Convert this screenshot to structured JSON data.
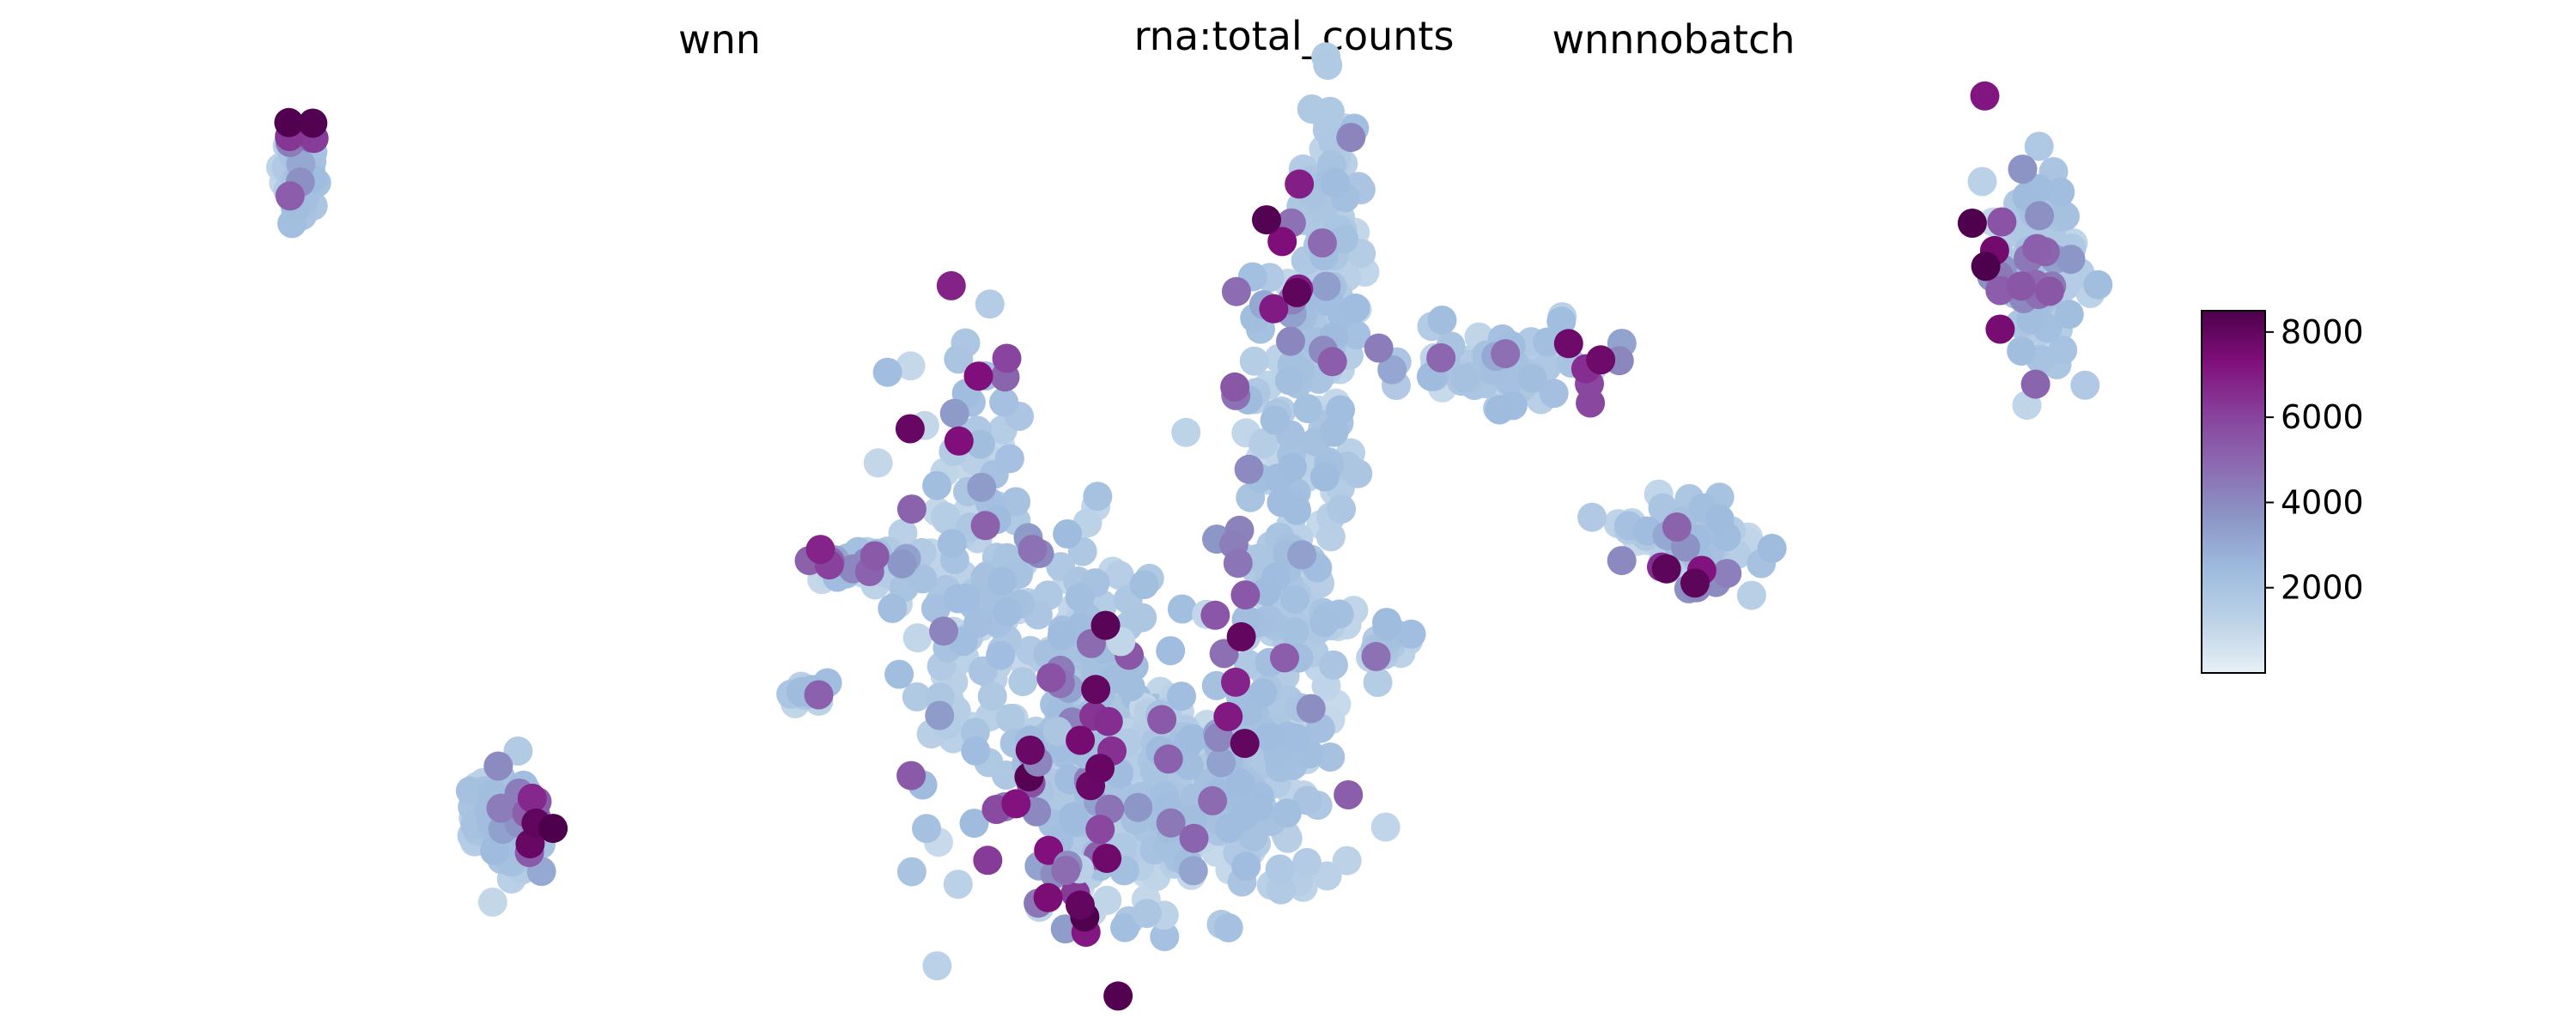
{
  "titles": {
    "left": "wnn",
    "center": "rna:total_counts",
    "right": "wnnnobatch"
  },
  "colorbar": {
    "ticks": [
      "2000",
      "4000",
      "6000",
      "8000"
    ],
    "colormap": "BuPu",
    "colors": [
      "#e7f0f6",
      "#bcd2e7",
      "#9ebbde",
      "#8c96c6",
      "#8c6bb1",
      "#88419d",
      "#810f7c",
      "#4d004b"
    ]
  },
  "chart_data": [
    {
      "type": "scatter",
      "panel": "wnn",
      "title": "wnn",
      "axes_visible": false,
      "grid": false,
      "color_by": "rna:total_counts",
      "color_range": [
        0,
        8500
      ],
      "clusters": [
        {
          "name": "",
          "x": -8.7,
          "y": 8.4,
          "sx": 0.12,
          "sy": 0.42,
          "n": 70,
          "high_side": "top"
        },
        {
          "name": "",
          "x": -5.8,
          "y": -4.0,
          "sx": 0.22,
          "sy": 0.45,
          "n": 110,
          "high_side": "right"
        },
        {
          "name": "",
          "x": 0.6,
          "y": 0.6,
          "sx": 0.45,
          "sy": 2.2,
          "n": 140,
          "high_side": "top"
        },
        {
          "name": "",
          "x": 2.2,
          "y": -2.6,
          "sx": 0.55,
          "sy": 1.8,
          "n": 260,
          "high_side": "bottom-left"
        },
        {
          "name": "",
          "x": -0.9,
          "y": 0.9,
          "sx": 0.35,
          "sy": 0.15,
          "n": 40,
          "high_side": "left"
        },
        {
          "name": "",
          "x": -1.7,
          "y": -1.5,
          "sx": 0.12,
          "sy": 0.12,
          "n": 14,
          "high_side": "none"
        }
      ]
    },
    {
      "type": "scatter",
      "panel": "wnnnobatch",
      "title": "wnnnobatch",
      "axes_visible": false,
      "grid": false,
      "color_by": "rna:total_counts",
      "color_range": [
        0,
        8500
      ],
      "clusters": [
        {
          "name": "",
          "x": -4.9,
          "y": 6.9,
          "sx": 0.2,
          "sy": 1.4,
          "n": 110,
          "high_side": "left"
        },
        {
          "name": "",
          "x": -3.0,
          "y": 4.7,
          "sx": 0.55,
          "sy": 0.35,
          "n": 90,
          "high_side": "right"
        },
        {
          "name": "",
          "x": -5.3,
          "y": 0.6,
          "sx": 0.35,
          "sy": 2.2,
          "n": 180,
          "high_side": "left"
        },
        {
          "name": "",
          "x": -6.2,
          "y": -3.4,
          "sx": 0.75,
          "sy": 1.0,
          "n": 240,
          "high_side": "left"
        },
        {
          "name": "",
          "x": -4.2,
          "y": -0.6,
          "sx": 0.15,
          "sy": 0.15,
          "n": 18,
          "high_side": "none"
        },
        {
          "name": "",
          "x": -1.0,
          "y": 1.4,
          "sx": 0.35,
          "sy": 0.45,
          "n": 70,
          "high_side": "bottom"
        },
        {
          "name": "",
          "x": 2.6,
          "y": 6.6,
          "sx": 0.25,
          "sy": 0.9,
          "n": 110,
          "high_side": "left"
        }
      ]
    }
  ]
}
